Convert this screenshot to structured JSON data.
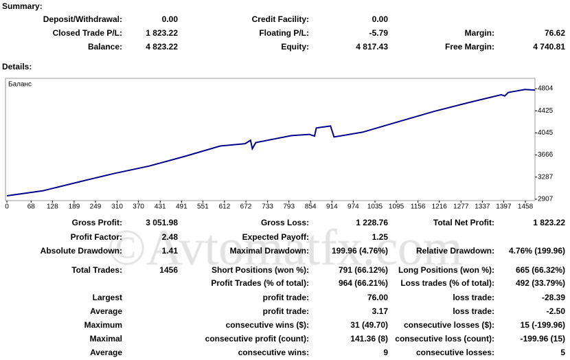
{
  "summary": {
    "title": "Summary:",
    "rows": [
      [
        "Deposit/Withdrawal:",
        "0.00",
        "Credit Facility:",
        "0.00",
        null,
        null
      ],
      [
        "Closed Trade P/L:",
        "1 823.22",
        "Floating P/L:",
        "-5.79",
        "Margin:",
        "76.62"
      ],
      [
        "Balance:",
        "4 823.22",
        "Equity:",
        "4 817.43",
        "Free Margin:",
        "4 740.81"
      ]
    ]
  },
  "details": {
    "title": "Details:",
    "rows": [
      [
        "Gross Profit:",
        "3 051.98",
        "Gross Loss:",
        "1 228.76",
        "Total Net Profit:",
        "1 823.22"
      ],
      [
        "Profit Factor:",
        "2.48",
        "Expected Payoff:",
        "1.25",
        null,
        null
      ],
      [
        "Absolute Drawdown:",
        "1.41",
        "Maximal Drawdown:",
        "199.96 (4.76%)",
        "Relative Drawdown:",
        "4.76% (199.96)"
      ],
      [
        "Total Trades:",
        "1456",
        "Short Positions (won %):",
        "791 (66.12%)",
        "Long Positions (won %):",
        "665 (66.32%)"
      ],
      [
        null,
        null,
        "Profit Trades (% of total):",
        "964 (66.21%)",
        "Loss trades (% of total):",
        "492 (33.79%)"
      ],
      [
        "Largest",
        null,
        "profit trade:",
        "76.00",
        "loss trade:",
        "-28.39"
      ],
      [
        "Average",
        null,
        "profit trade:",
        "3.17",
        "loss trade:",
        "-2.50"
      ],
      [
        "Maximum",
        null,
        "consecutive wins ($):",
        "31 (49.70)",
        "consecutive losses ($):",
        "15 (-199.96)"
      ],
      [
        "Maximal",
        null,
        "consecutive profit (count):",
        "141.36 (8)",
        "consecutive loss (count):",
        "-199.96 (15)"
      ],
      [
        "Average",
        null,
        "consecutive wins:",
        "9",
        "consecutive losses:",
        "5"
      ]
    ]
  },
  "watermark": "©Avtomatfx.com",
  "chart_data": {
    "type": "line",
    "x": [
      0,
      100,
      200,
      300,
      400,
      500,
      600,
      670,
      685,
      690,
      700,
      800,
      850,
      865,
      870,
      910,
      920,
      1000,
      1100,
      1200,
      1300,
      1390,
      1400,
      1410,
      1456,
      1485
    ],
    "series": [
      {
        "name": "Баланс",
        "color": "#00008b",
        "values": [
          2966,
          3050,
          3200,
          3346,
          3476,
          3643,
          3820,
          3860,
          3920,
          3773,
          3880,
          3998,
          4020,
          3990,
          4129,
          4164,
          3975,
          4058,
          4236,
          4413,
          4568,
          4700,
          4680,
          4740,
          4790,
          4780
        ]
      }
    ],
    "xlim": [
      -4,
      1485
    ],
    "ylim": [
      2883,
      4982
    ],
    "xticks": [
      0,
      68,
      128,
      189,
      249,
      310,
      370,
      431,
      491,
      551,
      612,
      672,
      733,
      793,
      854,
      914,
      974,
      1035,
      1095,
      1156,
      1216,
      1277,
      1337,
      1397,
      1458
    ],
    "yticks": [
      2907,
      3287,
      3666,
      4045,
      4425,
      4804
    ]
  }
}
